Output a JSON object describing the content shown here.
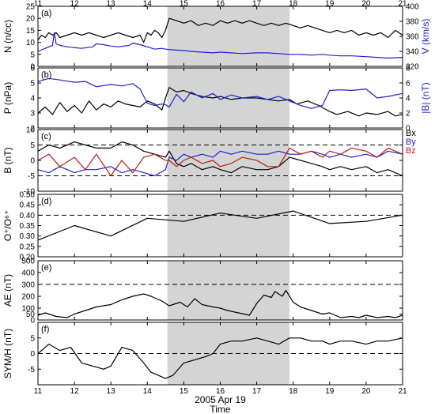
{
  "chart_data": {
    "type": "line",
    "title": "",
    "xlabel": "Time",
    "date_label": "2005 Apr 19",
    "xlim": [
      11,
      21
    ],
    "x_ticks": [
      11,
      12,
      13,
      14,
      15,
      16,
      17,
      18,
      19,
      20,
      21
    ],
    "x_tick_labels": [
      "11",
      "12",
      "13",
      "14",
      "15",
      "16",
      "17",
      "18",
      "19",
      "20",
      "21"
    ],
    "shaded_interval": [
      14.55,
      17.9
    ],
    "colors": {
      "black": "#000000",
      "blue": "#1f1fd6",
      "red": "#b81f0f",
      "shade": "#d4d4d4",
      "dash": "#000000"
    },
    "panels": [
      {
        "id": "a",
        "label": "(a)",
        "ylabel": "N (n/cc)",
        "ylim": [
          0,
          25
        ],
        "yticks": [
          0,
          5,
          10,
          15,
          20,
          25
        ],
        "right_axis": {
          "label": "V (km/s)",
          "ylim": [
            320,
            400
          ],
          "yticks": [
            320,
            340,
            360,
            380,
            400
          ],
          "color": "#1f1fd6"
        },
        "series": [
          {
            "axis": "left",
            "color": "#000000",
            "x": [
              11,
              11.1,
              11.2,
              11.3,
              11.4,
              11.5,
              11.6,
              11.8,
              12,
              12.2,
              12.4,
              12.6,
              12.8,
              13,
              13.2,
              13.4,
              13.6,
              13.8,
              13.9,
              14,
              14.1,
              14.2,
              14.3,
              14.4,
              14.5,
              14.6,
              14.8,
              15,
              15.2,
              15.4,
              15.6,
              15.8,
              16,
              16.2,
              16.4,
              16.6,
              16.8,
              17,
              17.2,
              17.4,
              17.6,
              17.8,
              18,
              18.2,
              18.4,
              18.6,
              18.8,
              19,
              19.2,
              19.4,
              19.6,
              19.8,
              20,
              20.2,
              20.4,
              20.6,
              20.8,
              21
            ],
            "y": [
              11,
              13,
              12,
              14,
              13,
              14,
              12,
              13,
              14,
              13,
              14,
              13,
              12,
              13,
              14,
              13,
              12,
              13,
              10,
              14,
              13,
              15,
              14,
              12,
              15,
              20,
              19,
              18,
              19,
              17,
              18,
              17,
              19,
              18,
              19,
              18,
              19,
              18,
              17,
              18,
              17,
              18,
              17,
              16,
              17,
              16,
              15,
              14,
              15,
              14,
              15,
              13,
              14,
              13,
              14,
              12,
              15,
              13
            ]
          },
          {
            "axis": "right",
            "color": "#1f1fd6",
            "x": [
              11,
              11.2,
              11.4,
              11.45,
              11.5,
              11.6,
              11.8,
              12,
              12.2,
              12.5,
              12.6,
              12.8,
              13,
              13.2,
              13.5,
              13.6,
              13.8,
              14,
              14.2,
              14.4,
              14.5,
              14.7,
              15,
              15.2,
              15.5,
              15.8,
              16,
              16.3,
              16.6,
              17,
              17.3,
              17.6,
              17.9,
              18.2,
              18.5,
              18.8,
              19,
              19.3,
              19.6,
              20,
              20.3,
              20.6,
              21
            ],
            "y": [
              340,
              344,
              348,
              365,
              350,
              348,
              346,
              345,
              344,
              346,
              350,
              349,
              347,
              346,
              348,
              351,
              349,
              346,
              343,
              344,
              343,
              342,
              341,
              340,
              339,
              338,
              339,
              338,
              337,
              338,
              338,
              337,
              336,
              336,
              335,
              336,
              335,
              334,
              334,
              333,
              332,
              331,
              332
            ]
          }
        ]
      },
      {
        "id": "b",
        "label": "(b)",
        "ylabel": "P (nPa)",
        "ylim": [
          2,
          6
        ],
        "yticks": [
          2,
          3,
          4,
          5,
          6
        ],
        "right_axis": {
          "label": "|B| (nT)",
          "ylim": [
            0,
            8
          ],
          "yticks": [
            0,
            2,
            4,
            6,
            8
          ],
          "color": "#1f1fd6"
        },
        "series": [
          {
            "axis": "left",
            "color": "#000000",
            "x": [
              11,
              11.2,
              11.4,
              11.6,
              11.8,
              12,
              12.2,
              12.4,
              12.6,
              12.8,
              13,
              13.2,
              13.4,
              13.6,
              13.8,
              14,
              14.2,
              14.4,
              14.5,
              14.6,
              14.8,
              15,
              15.2,
              15.5,
              15.8,
              16,
              16.3,
              16.6,
              17,
              17.3,
              17.6,
              17.9,
              18.1,
              18.4,
              18.7,
              19,
              19.2,
              19.5,
              19.8,
              20,
              20.3,
              20.6,
              20.8,
              21
            ],
            "y": [
              3.0,
              3.4,
              2.9,
              3.7,
              3.1,
              3.5,
              3.0,
              3.8,
              3.2,
              3.6,
              3.4,
              3.8,
              3.6,
              3.5,
              3.4,
              3.8,
              3.6,
              3.2,
              4.0,
              4.7,
              4.4,
              4.5,
              4.3,
              4.1,
              4.0,
              4.1,
              3.9,
              4.0,
              4.0,
              3.9,
              3.8,
              3.9,
              3.6,
              3.8,
              3.5,
              3.1,
              2.9,
              3.1,
              2.8,
              3.0,
              2.9,
              3.1,
              2.8,
              2.9
            ]
          },
          {
            "axis": "right",
            "color": "#1f1fd6",
            "x": [
              11,
              11.3,
              11.6,
              12,
              12.3,
              12.6,
              13,
              13.3,
              13.6,
              13.8,
              14,
              14.2,
              14.4,
              14.5,
              14.6,
              14.8,
              15,
              15.2,
              15.5,
              15.8,
              16,
              16.3,
              16.6,
              17,
              17.3,
              17.6,
              17.9,
              18.2,
              18.5,
              18.8,
              19,
              19.3,
              19.6,
              20,
              20.3,
              20.6,
              21
            ],
            "y": [
              6.2,
              6.6,
              6.4,
              6.1,
              6.2,
              5.5,
              5.8,
              5.6,
              5.9,
              5.2,
              3.3,
              3.0,
              3.2,
              3.1,
              2.8,
              4.5,
              3.5,
              4.8,
              4.0,
              4.6,
              3.8,
              4.4,
              4.0,
              4.2,
              3.8,
              4.2,
              3.6,
              3.0,
              2.6,
              3.0,
              5.0,
              5.1,
              5.0,
              5.2,
              4.0,
              4.2,
              4.6
            ]
          }
        ]
      },
      {
        "id": "c",
        "label": "(c)",
        "ylabel": "B (nT)",
        "ylim": [
          -10,
          10
        ],
        "yticks": [
          -10,
          -5,
          0,
          5,
          10
        ],
        "dashed_y": [
          5,
          -5
        ],
        "legend": [
          {
            "name": "Bx",
            "color": "#000000"
          },
          {
            "name": "By",
            "color": "#1f1fd6"
          },
          {
            "name": "Bz",
            "color": "#b81f0f"
          }
        ],
        "series": [
          {
            "name": "Bx",
            "color": "#000000",
            "x": [
              11,
              11.3,
              11.6,
              12,
              12.3,
              12.6,
              13,
              13.3,
              13.6,
              13.9,
              14.2,
              14.5,
              14.6,
              14.8,
              15,
              15.2,
              15.5,
              15.8,
              16,
              16.3,
              16.6,
              17,
              17.3,
              17.6,
              17.9,
              18.2,
              18.5,
              18.8,
              19,
              19.3,
              19.6,
              20,
              20.3,
              20.6,
              21
            ],
            "y": [
              3,
              5,
              4,
              6,
              5,
              4,
              4,
              6,
              5,
              3,
              2,
              1,
              3,
              -1,
              -2,
              -1,
              -3,
              -2,
              -3,
              -4,
              -2,
              -3,
              -3,
              -2,
              1,
              0,
              -1,
              -2,
              -3,
              -2,
              -3,
              -2,
              -4,
              -3,
              -5
            ]
          },
          {
            "name": "By",
            "color": "#1f1fd6",
            "x": [
              11,
              11.3,
              11.6,
              12,
              12.3,
              12.6,
              13,
              13.3,
              13.6,
              13.9,
              14.2,
              14.5,
              14.6,
              14.8,
              15,
              15.2,
              15.5,
              15.8,
              16,
              16.3,
              16.6,
              17,
              17.3,
              17.6,
              17.9,
              18.2,
              18.5,
              18.8,
              19,
              19.3,
              19.6,
              20,
              20.3,
              20.6,
              21
            ],
            "y": [
              -3,
              -4,
              -2,
              -4,
              -3,
              -3,
              -2,
              -4,
              -3,
              -4,
              -5,
              -3,
              1,
              0,
              2,
              1,
              2,
              1,
              3,
              2,
              3,
              2,
              2,
              3,
              2,
              2,
              3,
              2,
              1,
              2,
              1,
              2,
              1,
              3,
              2
            ]
          },
          {
            "name": "Bz",
            "color": "#b81f0f",
            "x": [
              11,
              11.3,
              11.6,
              12,
              12.3,
              12.6,
              13,
              13.3,
              13.6,
              13.9,
              14.2,
              14.5,
              14.6,
              14.8,
              15,
              15.2,
              15.5,
              15.8,
              16,
              16.3,
              16.6,
              17,
              17.3,
              17.6,
              17.9,
              18.2,
              18.5,
              18.8,
              19,
              19.3,
              19.6,
              20,
              20.3,
              20.6,
              21
            ],
            "y": [
              0,
              2,
              -2,
              1,
              -3,
              2,
              -5,
              0,
              -4,
              1,
              2,
              0,
              0,
              -2,
              0,
              1,
              -1,
              0,
              -2,
              -1,
              1,
              0,
              -2,
              -2,
              4,
              2,
              3,
              1,
              3,
              2,
              4,
              3,
              1,
              4,
              2
            ]
          }
        ]
      },
      {
        "id": "d",
        "label": "(d)",
        "ylabel": "O⁺/O⁶⁺",
        "ylim": [
          0.2,
          0.5
        ],
        "yticks": [
          0.2,
          0.25,
          0.3,
          0.35,
          0.4,
          0.45,
          0.5
        ],
        "ytick_labels": [
          "0.20",
          "0.25",
          "0.30",
          "0.35",
          "0.40",
          "0.45",
          "0.50"
        ],
        "dashed_y": [
          0.4
        ],
        "series": [
          {
            "color": "#000000",
            "x": [
              11,
              12,
              13,
              14,
              15,
              16,
              17,
              18,
              19,
              20,
              21
            ],
            "y": [
              0.28,
              0.35,
              0.3,
              0.385,
              0.37,
              0.41,
              0.385,
              0.42,
              0.36,
              0.37,
              0.4
            ]
          }
        ]
      },
      {
        "id": "e",
        "label": "(e)",
        "ylabel": "AE (nT)",
        "ylim": [
          0,
          500
        ],
        "yticks": [
          0,
          50,
          100,
          200,
          300,
          400,
          500
        ],
        "dashed_y": [
          300
        ],
        "series": [
          {
            "color": "#000000",
            "x": [
              11,
              11.2,
              11.5,
              11.8,
              12,
              12.3,
              12.6,
              13,
              13.3,
              13.6,
              13.9,
              14.1,
              14.4,
              14.6,
              14.9,
              15.1,
              15.3,
              15.5,
              15.8,
              16,
              16.2,
              16.5,
              16.8,
              17,
              17.2,
              17.4,
              17.5,
              17.7,
              17.8,
              18,
              18.2,
              18.5,
              18.8,
              19,
              19.3,
              19.6,
              19.8,
              20,
              20.3,
              20.6,
              20.8,
              21
            ],
            "y": [
              40,
              60,
              30,
              20,
              50,
              80,
              110,
              130,
              170,
              200,
              220,
              200,
              160,
              120,
              150,
              110,
              180,
              130,
              110,
              100,
              80,
              60,
              40,
              140,
              210,
              190,
              240,
              200,
              250,
              150,
              110,
              80,
              50,
              60,
              20,
              30,
              20,
              40,
              20,
              30,
              20,
              40
            ]
          }
        ]
      },
      {
        "id": "f",
        "label": "(f)",
        "ylabel": "SYM/H (nT)",
        "ylim": [
          -10,
          10
        ],
        "yticks": [
          -5,
          0,
          5
        ],
        "dashed_y": [
          0
        ],
        "series": [
          {
            "color": "#000000",
            "x": [
              11,
              11.3,
              11.6,
              11.9,
              12.2,
              12.5,
              12.8,
              13,
              13.3,
              13.6,
              13.9,
              14.1,
              14.3,
              14.5,
              14.7,
              15,
              15.3,
              15.6,
              15.8,
              16,
              16.3,
              16.6,
              17,
              17.3,
              17.6,
              17.9,
              18.2,
              18.5,
              18.8,
              19,
              19.3,
              19.6,
              20,
              20.3,
              20.6,
              21
            ],
            "y": [
              0,
              3,
              1,
              2,
              -3,
              -4,
              -5,
              -4,
              2,
              1,
              -3,
              -6,
              -7,
              -8,
              -7,
              -3,
              -2,
              -1,
              0,
              3,
              4,
              4,
              5,
              4,
              3,
              5,
              5,
              4,
              4,
              3,
              4,
              4,
              3,
              4,
              4,
              5
            ]
          }
        ]
      }
    ]
  }
}
